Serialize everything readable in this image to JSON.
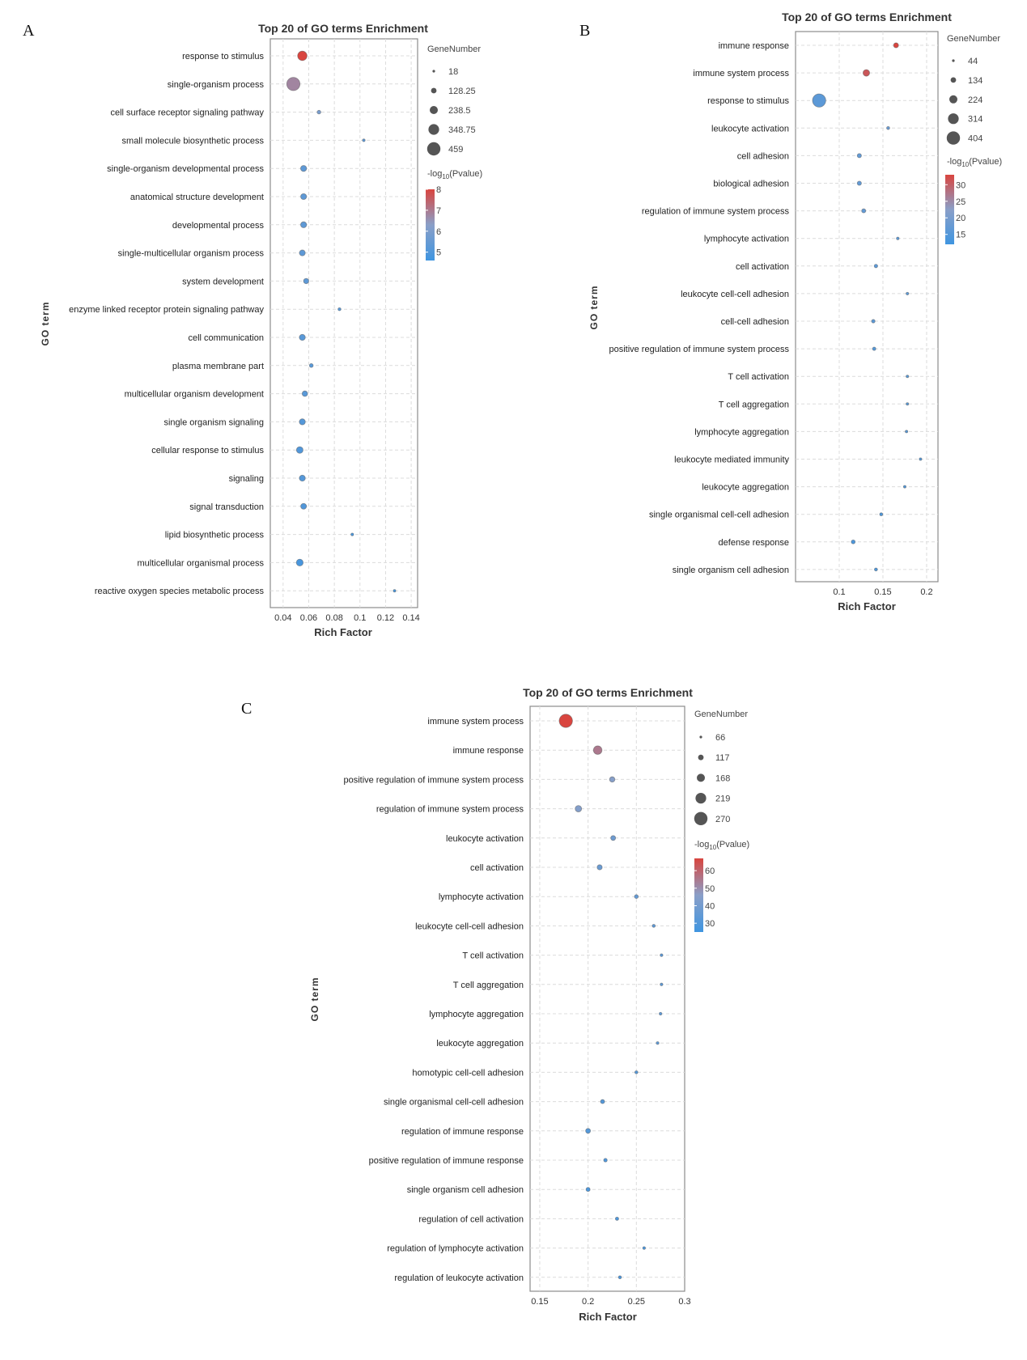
{
  "colors": {
    "low": "#3f95e0",
    "mid": "#8a9fc8",
    "high": "#d9453f",
    "frame": "#8c8c8c",
    "grid": "#dcdcdc",
    "size_legend": "#555555"
  },
  "chart_data": [
    {
      "id": "A",
      "panel_label": "A",
      "type": "scatter",
      "title": "Top 20 of GO terms Enrichment",
      "xlabel": "Rich Factor",
      "ylabel": "GO term",
      "xlim": [
        0.03,
        0.145
      ],
      "xticks": [
        0.04,
        0.06,
        0.08,
        0.1,
        0.12,
        0.14
      ],
      "xtick_labels": [
        "0.04",
        "0.06",
        "0.08",
        "0.1",
        "0.12",
        "0.14"
      ],
      "grid": true,
      "size_legend": {
        "title": "GeneNumber",
        "values": [
          18,
          128.25,
          238.5,
          348.75,
          459
        ],
        "labels": [
          "18",
          "128.25",
          "238.5",
          "348.75",
          "459"
        ]
      },
      "color_legend": {
        "title_main": "-log",
        "title_sub": "10",
        "title_tail": "(Pvalue)",
        "range": [
          4.6,
          8.0
        ],
        "ticks": [
          8,
          7,
          6,
          5
        ],
        "tick_labels": [
          "8",
          "7",
          "6",
          "5"
        ]
      },
      "terms": [
        {
          "label": "response to stimulus",
          "rich": 0.055,
          "genes": 300,
          "logp": 8.0
        },
        {
          "label": "single-organism process",
          "rich": 0.048,
          "genes": 459,
          "logp": 6.8
        },
        {
          "label": "cell surface receptor signaling pathway",
          "rich": 0.068,
          "genes": 65,
          "logp": 5.9
        },
        {
          "label": "small molecule biosynthetic process",
          "rich": 0.103,
          "genes": 25,
          "logp": 5.3
        },
        {
          "label": "single-organism developmental process",
          "rich": 0.056,
          "genes": 160,
          "logp": 5.3
        },
        {
          "label": "anatomical structure development",
          "rich": 0.056,
          "genes": 155,
          "logp": 5.3
        },
        {
          "label": "developmental process",
          "rich": 0.056,
          "genes": 160,
          "logp": 5.3
        },
        {
          "label": "single-multicellular organism process",
          "rich": 0.055,
          "genes": 155,
          "logp": 5.3
        },
        {
          "label": "system development",
          "rich": 0.058,
          "genes": 130,
          "logp": 5.3
        },
        {
          "label": "enzyme linked receptor protein signaling pathway",
          "rich": 0.084,
          "genes": 35,
          "logp": 5.2
        },
        {
          "label": "cell communication",
          "rich": 0.055,
          "genes": 160,
          "logp": 5.2
        },
        {
          "label": "plasma membrane part",
          "rich": 0.062,
          "genes": 70,
          "logp": 5.2
        },
        {
          "label": "multicellular organism development",
          "rich": 0.057,
          "genes": 140,
          "logp": 5.2
        },
        {
          "label": "single organism signaling",
          "rich": 0.055,
          "genes": 160,
          "logp": 5.1
        },
        {
          "label": "cellular response to stimulus",
          "rich": 0.053,
          "genes": 185,
          "logp": 5.0
        },
        {
          "label": "signaling",
          "rich": 0.055,
          "genes": 160,
          "logp": 5.1
        },
        {
          "label": "signal transduction",
          "rich": 0.056,
          "genes": 150,
          "logp": 5.0
        },
        {
          "label": "lipid biosynthetic process",
          "rich": 0.094,
          "genes": 25,
          "logp": 4.9
        },
        {
          "label": "multicellular organismal process",
          "rich": 0.053,
          "genes": 195,
          "logp": 4.8
        },
        {
          "label": "reactive oxygen species metabolic process",
          "rich": 0.127,
          "genes": 18,
          "logp": 4.7
        }
      ]
    },
    {
      "id": "B",
      "panel_label": "B",
      "type": "scatter",
      "title": "Top 20 of GO terms Enrichment",
      "xlabel": "Rich Factor",
      "ylabel": "GO term",
      "xlim": [
        0.05,
        0.213
      ],
      "xticks": [
        0.1,
        0.15,
        0.2
      ],
      "xtick_labels": [
        "0.1",
        "0.15",
        "0.2"
      ],
      "grid": true,
      "size_legend": {
        "title": "GeneNumber",
        "values": [
          44,
          134,
          224,
          314,
          404
        ],
        "labels": [
          "44",
          "134",
          "224",
          "314",
          "404"
        ]
      },
      "color_legend": {
        "title_main": "-log",
        "title_sub": "10",
        "title_tail": "(Pvalue)",
        "range": [
          12,
          33
        ],
        "ticks": [
          30,
          25,
          20,
          15
        ],
        "tick_labels": [
          "30",
          "25",
          "20",
          "15"
        ]
      },
      "terms": [
        {
          "label": "immune response",
          "rich": 0.165,
          "genes": 125,
          "logp": 33
        },
        {
          "label": "immune system process",
          "rich": 0.131,
          "genes": 180,
          "logp": 31
        },
        {
          "label": "response to stimulus",
          "rich": 0.077,
          "genes": 404,
          "logp": 16
        },
        {
          "label": "leukocyte activation",
          "rich": 0.156,
          "genes": 60,
          "logp": 18
        },
        {
          "label": "cell adhesion",
          "rich": 0.123,
          "genes": 100,
          "logp": 17
        },
        {
          "label": "biological adhesion",
          "rich": 0.123,
          "genes": 100,
          "logp": 17
        },
        {
          "label": "regulation of immune system process",
          "rich": 0.128,
          "genes": 95,
          "logp": 17
        },
        {
          "label": "lymphocyte activation",
          "rich": 0.167,
          "genes": 50,
          "logp": 16
        },
        {
          "label": "cell activation",
          "rich": 0.142,
          "genes": 75,
          "logp": 16
        },
        {
          "label": "leukocyte cell-cell adhesion",
          "rich": 0.178,
          "genes": 48,
          "logp": 16
        },
        {
          "label": "cell-cell adhesion",
          "rich": 0.139,
          "genes": 75,
          "logp": 16
        },
        {
          "label": "positive regulation of immune system process",
          "rich": 0.14,
          "genes": 70,
          "logp": 15
        },
        {
          "label": "T cell activation",
          "rich": 0.178,
          "genes": 44,
          "logp": 15
        },
        {
          "label": "T cell aggregation",
          "rich": 0.178,
          "genes": 44,
          "logp": 15
        },
        {
          "label": "lymphocyte aggregation",
          "rich": 0.177,
          "genes": 44,
          "logp": 15
        },
        {
          "label": "leukocyte mediated immunity",
          "rich": 0.193,
          "genes": 44,
          "logp": 15
        },
        {
          "label": "leukocyte aggregation",
          "rich": 0.175,
          "genes": 44,
          "logp": 14
        },
        {
          "label": "single organismal cell-cell adhesion",
          "rich": 0.148,
          "genes": 60,
          "logp": 14
        },
        {
          "label": "defense response",
          "rich": 0.116,
          "genes": 90,
          "logp": 14
        },
        {
          "label": "single organism cell adhesion",
          "rich": 0.142,
          "genes": 60,
          "logp": 14
        }
      ]
    },
    {
      "id": "C",
      "panel_label": "C",
      "type": "scatter",
      "title": "Top 20 of GO terms Enrichment",
      "xlabel": "Rich Factor",
      "ylabel": "GO term",
      "xlim": [
        0.14,
        0.3
      ],
      "xticks": [
        0.15,
        0.2,
        0.25,
        0.3
      ],
      "xtick_labels": [
        "0.15",
        "0.2",
        "0.25",
        "0.3"
      ],
      "grid": true,
      "size_legend": {
        "title": "GeneNumber",
        "values": [
          66,
          117,
          168,
          219,
          270
        ],
        "labels": [
          "66",
          "117",
          "168",
          "219",
          "270"
        ]
      },
      "color_legend": {
        "title_main": "-log",
        "title_sub": "10",
        "title_tail": "(Pvalue)",
        "range": [
          25,
          67
        ],
        "ticks": [
          60,
          50,
          40,
          30
        ],
        "tick_labels": [
          "60",
          "50",
          "40",
          "30"
        ]
      },
      "terms": [
        {
          "label": "immune system process",
          "rich": 0.177,
          "genes": 270,
          "logp": 67
        },
        {
          "label": "immune response",
          "rich": 0.21,
          "genes": 180,
          "logp": 55
        },
        {
          "label": "positive regulation of immune system process",
          "rich": 0.225,
          "genes": 120,
          "logp": 45
        },
        {
          "label": "regulation of immune system process",
          "rich": 0.19,
          "genes": 140,
          "logp": 44
        },
        {
          "label": "leukocyte activation",
          "rich": 0.226,
          "genes": 110,
          "logp": 38
        },
        {
          "label": "cell activation",
          "rich": 0.212,
          "genes": 115,
          "logp": 37
        },
        {
          "label": "lymphocyte activation",
          "rich": 0.25,
          "genes": 90,
          "logp": 35
        },
        {
          "label": "leukocyte cell-cell adhesion",
          "rich": 0.268,
          "genes": 75,
          "logp": 33
        },
        {
          "label": "T cell activation",
          "rich": 0.276,
          "genes": 70,
          "logp": 33
        },
        {
          "label": "T cell aggregation",
          "rich": 0.276,
          "genes": 70,
          "logp": 33
        },
        {
          "label": "lymphocyte aggregation",
          "rich": 0.275,
          "genes": 70,
          "logp": 33
        },
        {
          "label": "leukocyte aggregation",
          "rich": 0.272,
          "genes": 70,
          "logp": 33
        },
        {
          "label": "homotypic cell-cell adhesion",
          "rich": 0.25,
          "genes": 75,
          "logp": 31
        },
        {
          "label": "single organismal cell-cell adhesion",
          "rich": 0.215,
          "genes": 95,
          "logp": 31
        },
        {
          "label": "regulation of immune response",
          "rich": 0.2,
          "genes": 110,
          "logp": 31
        },
        {
          "label": "positive regulation of immune response",
          "rich": 0.218,
          "genes": 85,
          "logp": 30
        },
        {
          "label": "single organism cell adhesion",
          "rich": 0.2,
          "genes": 95,
          "logp": 29
        },
        {
          "label": "regulation of cell activation",
          "rich": 0.23,
          "genes": 80,
          "logp": 29
        },
        {
          "label": "regulation of lymphocyte activation",
          "rich": 0.258,
          "genes": 70,
          "logp": 28
        },
        {
          "label": "regulation of leukocyte activation",
          "rich": 0.233,
          "genes": 75,
          "logp": 28
        }
      ]
    }
  ]
}
